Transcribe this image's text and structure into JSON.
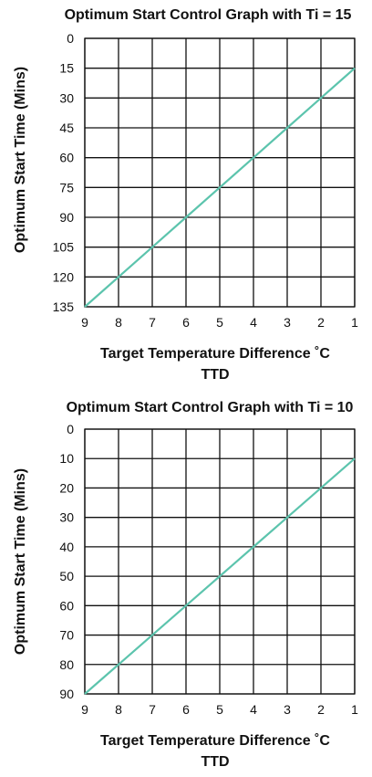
{
  "chart_data": [
    {
      "type": "line",
      "title": "Optimum Start Control Graph with Ti = 15",
      "xlabel": "Target Temperature Difference ˚C",
      "xlabel2": "TTD",
      "ylabel": "Optimum Start Time (Mins)",
      "x_ticks": [
        9,
        8,
        7,
        6,
        5,
        4,
        3,
        2,
        1
      ],
      "y_ticks": [
        0,
        15,
        30,
        45,
        60,
        75,
        90,
        105,
        120,
        135
      ],
      "xlim": [
        9,
        1
      ],
      "ylim": [
        0,
        135
      ],
      "y_inverted": true,
      "grid": true,
      "colors": {
        "series": "#5cc4ad",
        "grid": "#111111"
      },
      "series": [
        {
          "x": [
            9,
            8,
            7,
            6,
            5,
            4,
            3,
            2,
            1
          ],
          "y": [
            135,
            120,
            105,
            90,
            75,
            60,
            45,
            30,
            15
          ]
        }
      ]
    },
    {
      "type": "line",
      "title": "Optimum Start Control Graph with Ti = 10",
      "xlabel": "Target Temperature Difference ˚C",
      "xlabel2": "TTD",
      "ylabel": "Optimum Start Time (Mins)",
      "x_ticks": [
        9,
        8,
        7,
        6,
        5,
        4,
        3,
        2,
        1
      ],
      "y_ticks": [
        0,
        10,
        20,
        30,
        40,
        50,
        60,
        70,
        80,
        90
      ],
      "xlim": [
        9,
        1
      ],
      "ylim": [
        0,
        90
      ],
      "y_inverted": true,
      "grid": true,
      "colors": {
        "series": "#5cc4ad",
        "grid": "#111111"
      },
      "series": [
        {
          "x": [
            9,
            8,
            7,
            6,
            5,
            4,
            3,
            2,
            1
          ],
          "y": [
            90,
            80,
            70,
            60,
            50,
            40,
            30,
            20,
            10
          ]
        }
      ]
    }
  ]
}
